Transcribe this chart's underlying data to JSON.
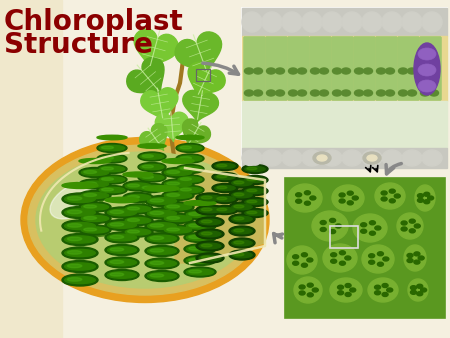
{
  "bg_color": "#f5f0e0",
  "left_panel_color": "#f0e8cc",
  "title_line1": "Chloroplast",
  "title_line2": "Structure",
  "title_color": "#8B0000",
  "title_fontsize": 20,
  "arrow_color": "#999999",
  "chloroplast_outer": "#E8A020",
  "chloroplast_inner": "#F5C855",
  "chloroplast_stroma": "#c8e090",
  "granum_dark": "#1a5c00",
  "granum_mid": "#2e8000",
  "granum_light": "#4aaa10",
  "leaf_colors": [
    "#78c030",
    "#6ab830",
    "#5aa820",
    "#8ad040",
    "#70b828"
  ],
  "leaf_vein": "#c8eea0",
  "stem_color": "#a07820",
  "cell_top_gray": "#c8c8c0",
  "cell_palisade": "#a0c870",
  "cell_palisade_dark": "#709050",
  "cell_chloro": "#5a8a30",
  "cell_spongy": "#d8e8c0",
  "cell_vascular": "#7040a0",
  "cell_bg_yellow": "#e8d890",
  "stomata_color": "#b8b8a8",
  "micro_bg": "#5a9820",
  "micro_cell": "#78b030",
  "micro_cell_border": "#e0f0a0",
  "micro_chloro": "#2a6800",
  "box_border": "#888888",
  "sel_box": "#cccccc"
}
